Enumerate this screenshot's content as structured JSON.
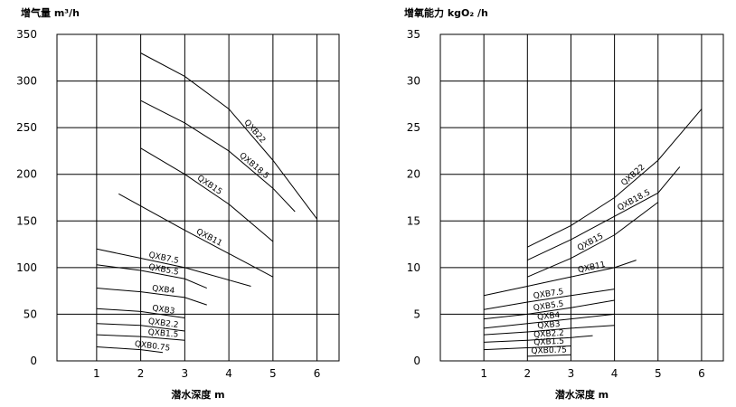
{
  "chart_data": [
    {
      "type": "line",
      "y_label": "增气量 m³/h",
      "x_label": "潜水深度 m",
      "color": "#000000",
      "grid": true,
      "xlim": [
        0.1,
        6.5
      ],
      "xticks": [
        1,
        2,
        3,
        4,
        5,
        6
      ],
      "ylim": [
        0,
        350
      ],
      "yticks": [
        0,
        50,
        100,
        150,
        200,
        250,
        300,
        350
      ],
      "series": [
        {
          "name": "QXB22",
          "x": [
            2,
            3,
            4,
            5,
            6
          ],
          "values": [
            330,
            305,
            270,
            215,
            152
          ]
        },
        {
          "name": "QXB18.5",
          "x": [
            2,
            3,
            4,
            5,
            5.5
          ],
          "values": [
            279,
            255,
            225,
            185,
            160
          ]
        },
        {
          "name": "QXB15",
          "x": [
            2,
            3,
            4,
            5
          ],
          "values": [
            228,
            200,
            168,
            128
          ]
        },
        {
          "name": "QXB11",
          "x": [
            1.5,
            3,
            4,
            5
          ],
          "values": [
            179,
            140,
            115,
            90
          ]
        },
        {
          "name": "QXB7.5",
          "x": [
            1,
            2,
            3,
            4.5
          ],
          "values": [
            120,
            110,
            100,
            80
          ]
        },
        {
          "name": "QXB5.5",
          "x": [
            1,
            2,
            3,
            3.5
          ],
          "values": [
            103,
            97,
            88,
            78
          ]
        },
        {
          "name": "QXB4",
          "x": [
            1,
            2,
            3,
            3.5
          ],
          "values": [
            78,
            74,
            68,
            60
          ]
        },
        {
          "name": "QXB3",
          "x": [
            1,
            2,
            3
          ],
          "values": [
            56,
            53,
            46
          ]
        },
        {
          "name": "QXB2.2",
          "x": [
            1,
            2,
            3
          ],
          "values": [
            40,
            38,
            32
          ]
        },
        {
          "name": "QXB1.5",
          "x": [
            1,
            2,
            3
          ],
          "values": [
            28,
            26,
            22
          ]
        },
        {
          "name": "QXB0.75",
          "x": [
            1,
            2,
            2.5
          ],
          "values": [
            15,
            12,
            9
          ]
        }
      ]
    },
    {
      "type": "line",
      "y_label": "增氧能力 kgO₂ /h",
      "x_label": "潜水深度 m",
      "color": "#000000",
      "grid": true,
      "xlim": [
        0,
        6.5
      ],
      "xticks": [
        1,
        2,
        3,
        4,
        5,
        6
      ],
      "ylim": [
        0,
        35
      ],
      "yticks": [
        0,
        5,
        10,
        15,
        20,
        25,
        30,
        35
      ],
      "series": [
        {
          "name": "QXB22",
          "x": [
            2,
            3,
            4,
            5,
            6
          ],
          "values": [
            12.2,
            14.5,
            17.5,
            21.5,
            27
          ]
        },
        {
          "name": "QXB18.5",
          "x": [
            2,
            3,
            4,
            5,
            5.5
          ],
          "values": [
            10.8,
            13,
            15.5,
            18,
            20.8
          ]
        },
        {
          "name": "QXB15",
          "x": [
            2,
            3,
            4,
            5
          ],
          "values": [
            9,
            11,
            13.5,
            17
          ]
        },
        {
          "name": "QXB11",
          "x": [
            1,
            2,
            3,
            4,
            4.5
          ],
          "values": [
            7,
            8,
            9,
            10,
            10.8
          ]
        },
        {
          "name": "QXB7.5",
          "x": [
            1,
            2,
            3,
            4
          ],
          "values": [
            5.5,
            6.3,
            7,
            7.7
          ]
        },
        {
          "name": "QXB5.5",
          "x": [
            1,
            2,
            3,
            4
          ],
          "values": [
            4.5,
            5,
            5.7,
            6.5
          ]
        },
        {
          "name": "QXB4",
          "x": [
            1,
            2,
            3,
            4
          ],
          "values": [
            3.5,
            4,
            4.5,
            5
          ]
        },
        {
          "name": "QXB3",
          "x": [
            1,
            2,
            3,
            4
          ],
          "values": [
            2.8,
            3.1,
            3.5,
            3.8
          ]
        },
        {
          "name": "QXB2.2",
          "x": [
            1,
            2,
            3,
            3.5
          ],
          "values": [
            2,
            2.2,
            2.5,
            2.7
          ]
        },
        {
          "name": "QXB1.5",
          "x": [
            1,
            2,
            3
          ],
          "values": [
            1.2,
            1.4,
            1.6
          ]
        },
        {
          "name": "QXB0.75",
          "x": [
            2,
            3
          ],
          "values": [
            0.5,
            0.65
          ]
        }
      ]
    }
  ]
}
